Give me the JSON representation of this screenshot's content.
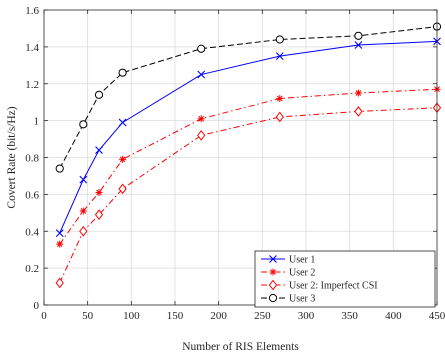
{
  "chart_data": {
    "type": "line",
    "title": "",
    "xlabel": "Number of RIS Elements",
    "ylabel": "Covert Rate (bit/s/Hz)",
    "xlim": [
      0,
      450
    ],
    "ylim": [
      0,
      1.6
    ],
    "xticks": [
      0,
      50,
      100,
      150,
      200,
      250,
      300,
      350,
      400,
      450
    ],
    "yticks": [
      0,
      0.2,
      0.4,
      0.6,
      0.8,
      1,
      1.2,
      1.4,
      1.6
    ],
    "xtick_labels": [
      "0",
      "50",
      "100",
      "150",
      "200",
      "250",
      "300",
      "350",
      "400",
      "450"
    ],
    "ytick_labels": [
      "0",
      "0.2",
      "0.4",
      "0.6",
      "0.8",
      "1",
      "1.2",
      "1.4",
      "1.6"
    ],
    "grid": true,
    "legend_position": "bottom-right",
    "series": [
      {
        "name": "User 1",
        "color": "#0000ff",
        "line_style": "solid",
        "marker": "x",
        "x": [
          18,
          45,
          63,
          90,
          180,
          270,
          360,
          450
        ],
        "y": [
          0.39,
          0.68,
          0.84,
          0.99,
          1.25,
          1.35,
          1.41,
          1.43
        ]
      },
      {
        "name": "User 2",
        "color": "#ff0000",
        "line_style": "dashdot",
        "marker": "asterisk",
        "x": [
          18,
          45,
          63,
          90,
          180,
          270,
          360,
          450
        ],
        "y": [
          0.33,
          0.51,
          0.61,
          0.79,
          1.01,
          1.12,
          1.15,
          1.17
        ]
      },
      {
        "name": "User 2: Imperfect CSI",
        "color": "#ff0000",
        "line_style": "dashdot",
        "marker": "diamond",
        "x": [
          18,
          45,
          63,
          90,
          180,
          270,
          360,
          450
        ],
        "y": [
          0.12,
          0.4,
          0.49,
          0.63,
          0.92,
          1.02,
          1.05,
          1.07
        ]
      },
      {
        "name": "User 3",
        "color": "#000000",
        "line_style": "dashed",
        "marker": "circle",
        "x": [
          18,
          45,
          63,
          90,
          180,
          270,
          360,
          450
        ],
        "y": [
          0.74,
          0.98,
          1.14,
          1.26,
          1.39,
          1.44,
          1.46,
          1.51
        ]
      }
    ]
  }
}
